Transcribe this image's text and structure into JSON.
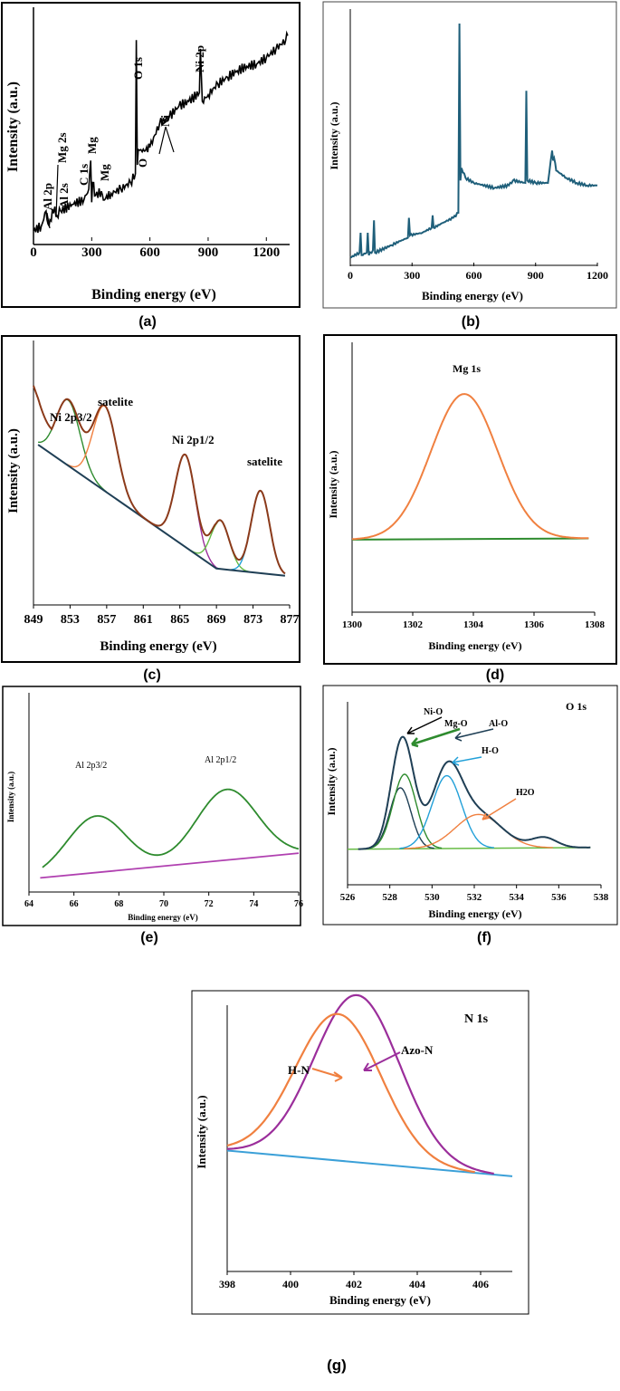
{
  "colors": {
    "frame": "#000000",
    "teal": "#1f5f7a",
    "brown": "#8b3a1a",
    "orange": "#f08040",
    "green": "#2e8b2e",
    "lightgreen": "#66bb44",
    "purple": "#9b2e9b",
    "cyan": "#22a0d8",
    "navy": "#1f3f55",
    "magenta": "#b040b0",
    "blue": "#3ba0d8"
  },
  "chart_data": [
    {
      "id": "a",
      "type": "line",
      "caption": "(a)",
      "xlabel": "Binding  energy (eV)",
      "ylabel": "Intensity  (a.u.)",
      "xlim": [
        0,
        1320
      ],
      "ylim": [
        0,
        100
      ],
      "xticks": [
        "0",
        "300",
        "600",
        "900",
        "1200"
      ],
      "xtick_values": [
        0,
        300,
        600,
        900,
        1200
      ],
      "series": [
        {
          "name": "survey",
          "color": "black",
          "x": [
            0,
            40,
            65,
            75,
            85,
            110,
            120,
            140,
            200,
            260,
            285,
            295,
            300,
            305,
            320,
            350,
            360,
            400,
            450,
            500,
            525,
            530,
            535,
            540,
            560,
            600,
            650,
            700,
            750,
            800,
            855,
            860,
            870,
            900,
            950,
            1000,
            1050,
            1100,
            1150,
            1200,
            1250,
            1300,
            1310
          ],
          "y": [
            3,
            5,
            12,
            6,
            8,
            14,
            10,
            12,
            15,
            17,
            22,
            35,
            16,
            25,
            19,
            21,
            17,
            20,
            22,
            25,
            29,
            90,
            33,
            40,
            39,
            41,
            52,
            55,
            60,
            62,
            66,
            86,
            62,
            65,
            70,
            73,
            76,
            78,
            79,
            82,
            86,
            90,
            92
          ]
        }
      ],
      "annotations": [
        "Al 2p",
        "Mg 2s",
        "Al 2s",
        "C 1s",
        "Mg",
        "Mg",
        "O 1s",
        "O",
        "Ni",
        "Ni 2p"
      ]
    },
    {
      "id": "b",
      "type": "line",
      "caption": "(b)",
      "xlabel": "Binding energy (eV)",
      "ylabel": "Intensity (a.u.)",
      "xlim": [
        0,
        1200
      ],
      "ylim": [
        0,
        100
      ],
      "xticks": [
        "0",
        "300",
        "600",
        "900",
        "1200"
      ],
      "xtick_values": [
        0,
        300,
        600,
        900,
        1200
      ],
      "series": [
        {
          "name": "survey",
          "color": "teal",
          "x": [
            0,
            45,
            50,
            55,
            80,
            85,
            90,
            110,
            115,
            120,
            200,
            250,
            280,
            285,
            290,
            350,
            395,
            400,
            405,
            450,
            500,
            525,
            530,
            535,
            540,
            560,
            600,
            700,
            770,
            790,
            850,
            855,
            860,
            900,
            960,
            980,
            985,
            990,
            1000,
            1050,
            1100,
            1150,
            1200
          ],
          "y": [
            2,
            4,
            12,
            3,
            4,
            12,
            3,
            5,
            17,
            4,
            7,
            9,
            10,
            18,
            11,
            12,
            14,
            19,
            14,
            16,
            18,
            20,
            96,
            33,
            38,
            34,
            32,
            30,
            31,
            33,
            32,
            69,
            33,
            32,
            32,
            45,
            41,
            42,
            37,
            34,
            32,
            31,
            31
          ]
        }
      ]
    },
    {
      "id": "c",
      "type": "line",
      "caption": "(c)",
      "xlabel": "Binding energy (eV)",
      "ylabel": "Intensity  (a.u.)",
      "xlim": [
        849,
        877
      ],
      "ylim": [
        0,
        100
      ],
      "xticks": [
        "849",
        "853",
        "857",
        "861",
        "865",
        "869",
        "873",
        "877"
      ],
      "xtick_values": [
        849,
        853,
        857,
        861,
        865,
        869,
        873,
        877
      ],
      "peaks": [
        {
          "label": "Ni  2p3/2",
          "center": 852.8,
          "sigma": 1.3,
          "amplitude": 27,
          "color": "green"
        },
        {
          "label": "satelite",
          "center": 856.8,
          "sigma": 1.3,
          "amplitude": 35,
          "color": "orange"
        },
        {
          "label": "Ni  2p1/2",
          "center": 865.6,
          "sigma": 1.1,
          "amplitude": 38,
          "color": "purple"
        },
        {
          "label": "",
          "center": 869.4,
          "sigma": 1.0,
          "amplitude": 20,
          "color": "lightgreen"
        },
        {
          "label": "satelite",
          "center": 873.8,
          "sigma": 1.0,
          "amplitude": 34,
          "color": "cyan"
        }
      ],
      "baseline": [
        [
          849.5,
          66
        ],
        [
          869,
          15
        ],
        [
          876.5,
          12
        ]
      ],
      "envelope_color": "brown"
    },
    {
      "id": "d",
      "type": "line",
      "caption": "(d)",
      "xlabel": "Binding energy (eV)",
      "ylabel": "Intensity (a.u.)",
      "xlim": [
        1300,
        1308
      ],
      "ylim": [
        0,
        100
      ],
      "xticks": [
        "1300",
        "1302",
        "1304",
        "1306",
        "1308"
      ],
      "xtick_values": [
        1300,
        1302,
        1304,
        1306,
        1308
      ],
      "peaks": [
        {
          "label": "Mg 1s",
          "center": 1303.7,
          "sigma": 1.1,
          "amplitude": 56,
          "color": "orange"
        }
      ],
      "baseline": [
        [
          1300,
          28
        ],
        [
          1307.8,
          28.5
        ]
      ],
      "baseline_color": "green"
    },
    {
      "id": "e",
      "type": "line",
      "caption": "(e)",
      "xlabel": "Binding energy (eV)",
      "ylabel": "Intensity (a.u.)",
      "xlim": [
        64,
        76
      ],
      "ylim": [
        0,
        100
      ],
      "xticks": [
        "64",
        "66",
        "68",
        "70",
        "72",
        "74",
        "76"
      ],
      "xtick_values": [
        64,
        66,
        68,
        70,
        72,
        74,
        76
      ],
      "peaks": [
        {
          "label": "Al 2p3/2",
          "center": 67.0,
          "sigma": 1.3,
          "amplitude": 32,
          "color": "green"
        },
        {
          "label": "Al 2p1/2",
          "center": 72.8,
          "sigma": 1.35,
          "amplitude": 40,
          "color": "green"
        }
      ],
      "baseline": [
        [
          64.5,
          8
        ],
        [
          76,
          22
        ]
      ],
      "baseline_color": "magenta"
    },
    {
      "id": "f",
      "type": "line",
      "caption": "(f)",
      "title": "O 1s",
      "xlabel": "Binding energy (eV)",
      "ylabel": "Intensity (a.u.)",
      "xlim": [
        526,
        538
      ],
      "ylim": [
        0,
        100
      ],
      "xticks": [
        "526",
        "528",
        "530",
        "532",
        "534",
        "536",
        "538"
      ],
      "xtick_values": [
        526,
        528,
        530,
        532,
        534,
        536,
        538
      ],
      "peaks": [
        {
          "label": "Ni-O",
          "center": 528.5,
          "sigma": 0.5,
          "amplitude": 36,
          "color": "navy"
        },
        {
          "label": "Mg-O",
          "center": 528.7,
          "sigma": 0.55,
          "amplitude": 44,
          "color": "green"
        },
        {
          "label": "H-O",
          "center": 530.7,
          "sigma": 0.7,
          "amplitude": 43,
          "color": "cyan"
        },
        {
          "label": "H2O",
          "center": 532.2,
          "sigma": 1.1,
          "amplitude": 20,
          "color": "orange"
        }
      ],
      "extra_labels": [
        "Al-O"
      ],
      "baseline": [
        [
          526,
          21
        ],
        [
          537.5,
          22
        ]
      ],
      "baseline_color": "lightgreen",
      "envelope_color": "navy"
    },
    {
      "id": "g",
      "type": "line",
      "caption": "(g)",
      "title": "N 1s",
      "xlabel": "Binding energy (eV)",
      "ylabel": "Intensity (a.u.)",
      "xlim": [
        398,
        407
      ],
      "ylim": [
        0,
        100
      ],
      "xticks": [
        "398",
        "400",
        "402",
        "404",
        "406"
      ],
      "xtick_values": [
        398,
        400,
        402,
        404,
        406
      ],
      "peaks": [
        {
          "label": "Azo-N",
          "center": 402.1,
          "sigma": 1.35,
          "amplitude": 65,
          "color": "purple"
        },
        {
          "label": "H-N",
          "center": 401.5,
          "sigma": 1.35,
          "amplitude": 57,
          "color": "orange"
        }
      ],
      "baseline": [
        [
          398,
          47
        ],
        [
          407,
          37
        ]
      ],
      "baseline_color": "blue"
    }
  ]
}
